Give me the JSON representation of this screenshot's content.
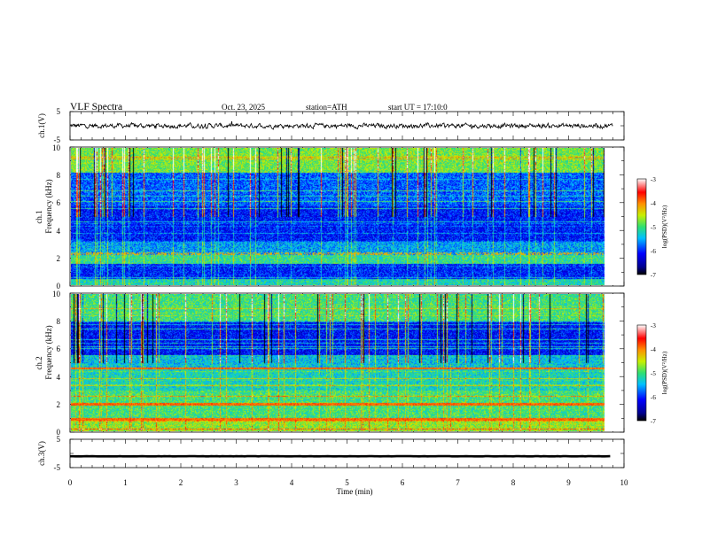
{
  "header": {
    "title": "VLF Spectra",
    "date": "Oct. 23, 2025",
    "station": "station=ATH",
    "start": "start UT =  17:10:0"
  },
  "colors": {
    "frame": "#000000",
    "waveform": "#000000",
    "background": "#ffffff"
  },
  "chart_data": [
    {
      "id": "ch1-waveform",
      "type": "line",
      "ylabel": "ch.1(V)",
      "ylim": [
        -5,
        5
      ],
      "y_tick_labels": [
        "5",
        "-5"
      ],
      "xlim": [
        0,
        10
      ],
      "data_end_min": 9.8,
      "description_values": "noisy signal fluctuating around 0 V with amplitude roughly ±1 V"
    },
    {
      "id": "ch1-spectrogram",
      "type": "heatmap",
      "ylabel": "ch.1\nFrequency (kHz)",
      "ylabel_lines": [
        "ch.1",
        "Frequency (kHz)"
      ],
      "ylim": [
        0,
        10
      ],
      "y_tick_labels": [
        "0",
        "2",
        "4",
        "6",
        "8",
        "10"
      ],
      "xlim": [
        0,
        10
      ],
      "colorbar": {
        "label": "log(PSD)(V²/Hz)",
        "range": [
          -7,
          -3
        ],
        "tick_labels": [
          "-3",
          "-4",
          "-5",
          "-6",
          "-7"
        ]
      }
    },
    {
      "id": "ch2-spectrogram",
      "type": "heatmap",
      "ylabel": "ch.2\nFrequency (kHz)",
      "ylabel_lines": [
        "ch.2",
        "Frequency (kHz)"
      ],
      "ylim": [
        0,
        10
      ],
      "y_tick_labels": [
        "0",
        "2",
        "4",
        "6",
        "8",
        "10"
      ],
      "xlim": [
        0,
        10
      ],
      "colorbar": {
        "label": "log(PSD)(V²/Hz)",
        "range": [
          -7,
          -3
        ],
        "tick_labels": [
          "-3",
          "-4",
          "-5",
          "-6",
          "-7"
        ]
      }
    },
    {
      "id": "ch3-waveform",
      "type": "line",
      "ylabel": "ch.3(V)",
      "ylim": [
        -5,
        5
      ],
      "y_tick_labels": [
        "5",
        "-5"
      ],
      "xlim": [
        0,
        10
      ],
      "data_end_min": 9.8,
      "description_values": "near-constant signal at about -1 V"
    }
  ],
  "x_axis": {
    "label": "Time (min)",
    "range": [
      0,
      10
    ],
    "tick_labels": [
      "0",
      "1",
      "2",
      "3",
      "4",
      "5",
      "6",
      "7",
      "8",
      "9",
      "10"
    ]
  },
  "icons": {
    "colorbar": "colorbar-icon"
  }
}
